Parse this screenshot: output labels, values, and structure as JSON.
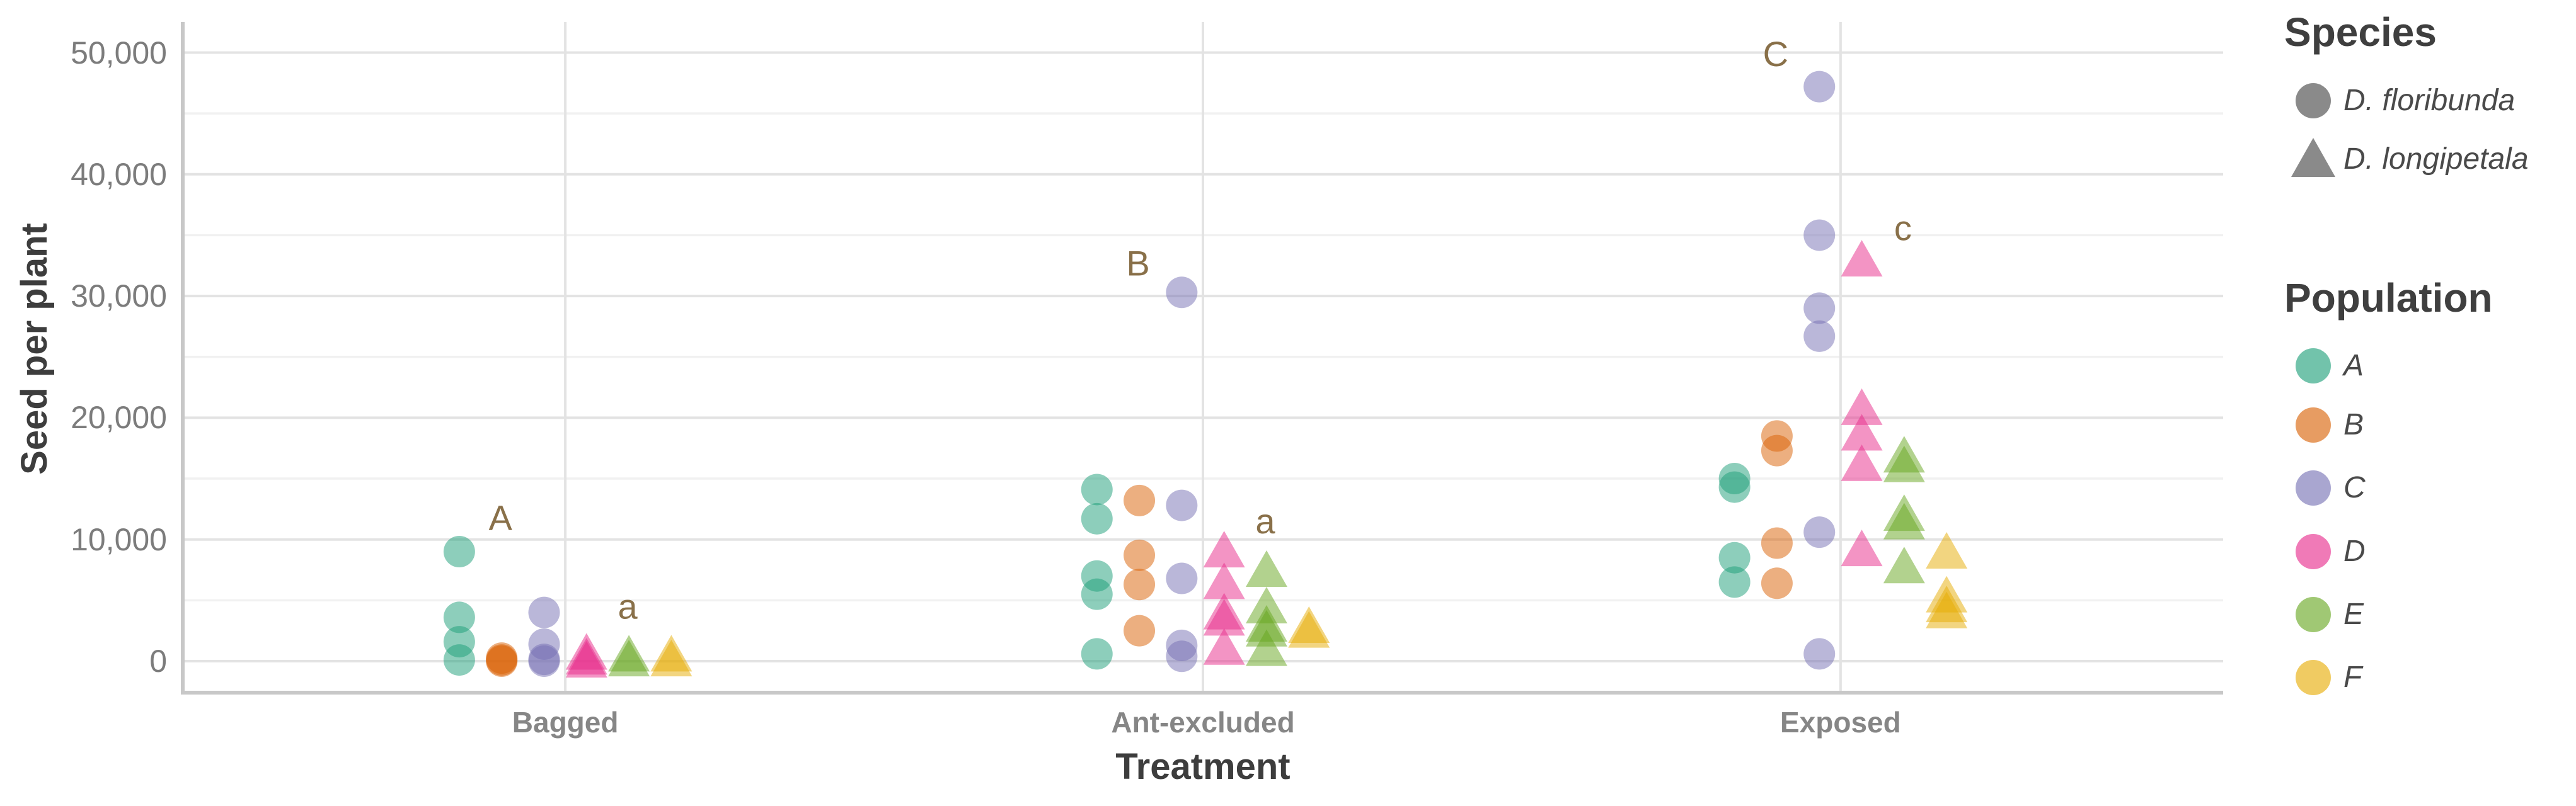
{
  "chart_data": {
    "type": "scatter",
    "title": "",
    "xlabel": "Treatment",
    "ylabel": "Seed per plant",
    "categories": [
      "Bagged",
      "Ant-excluded",
      "Exposed"
    ],
    "y_ticks": [
      {
        "value": 0,
        "label": "0"
      },
      {
        "value": 10000,
        "label": "10,000"
      },
      {
        "value": 20000,
        "label": "20,000"
      },
      {
        "value": 30000,
        "label": "30,000"
      },
      {
        "value": 40000,
        "label": "40,000"
      },
      {
        "value": 50000,
        "label": "50,000"
      }
    ],
    "y_minor_ticks": [
      5000,
      15000,
      25000,
      35000,
      45000
    ],
    "ylim": [
      -2600,
      52500
    ],
    "grid": "major+minor",
    "legend_position": "right",
    "point_alpha": 0.5,
    "legend": {
      "species_title": "Species",
      "species": [
        {
          "label": "D. floribunda",
          "shape": "circle"
        },
        {
          "label": "D. longipetala",
          "shape": "triangle"
        }
      ],
      "population_title": "Population",
      "population": [
        {
          "label": "A",
          "color": "#1B9E77"
        },
        {
          "label": "B",
          "color": "#D95F02"
        },
        {
          "label": "C",
          "color": "#7570B3"
        },
        {
          "label": "D",
          "color": "#E7298A"
        },
        {
          "label": "E",
          "color": "#66A61E"
        },
        {
          "label": "F",
          "color": "#E6AB02"
        }
      ]
    },
    "annotations": [
      {
        "text": "A",
        "treatment": "Bagged",
        "side": "left",
        "value": 11800
      },
      {
        "text": "a",
        "treatment": "Bagged",
        "side": "right",
        "value": 4500
      },
      {
        "text": "B",
        "treatment": "Ant-excluded",
        "side": "left",
        "value": 32700
      },
      {
        "text": "a",
        "treatment": "Ant-excluded",
        "side": "right",
        "value": 11500
      },
      {
        "text": "C",
        "treatment": "Exposed",
        "side": "left",
        "value": 49900
      },
      {
        "text": "c",
        "treatment": "Exposed",
        "side": "right",
        "value": 35600
      }
    ],
    "series": [
      {
        "treatment": "Bagged",
        "population": "A",
        "species": "D. floribunda",
        "values": [
          9000,
          3600,
          1600,
          100
        ]
      },
      {
        "treatment": "Bagged",
        "population": "B",
        "species": "D. floribunda",
        "values": [
          250,
          100,
          0
        ]
      },
      {
        "treatment": "Bagged",
        "population": "C",
        "species": "D. floribunda",
        "values": [
          4000,
          1400,
          150,
          0
        ]
      },
      {
        "treatment": "Bagged",
        "population": "D",
        "species": "D. longipetala",
        "values": [
          700,
          300,
          50
        ]
      },
      {
        "treatment": "Bagged",
        "population": "E",
        "species": "D. longipetala",
        "values": [
          550,
          150
        ]
      },
      {
        "treatment": "Bagged",
        "population": "F",
        "species": "D. longipetala",
        "values": [
          550,
          150
        ]
      },
      {
        "treatment": "Ant-excluded",
        "population": "A",
        "species": "D. floribunda",
        "values": [
          14100,
          11700,
          7000,
          5500,
          600
        ]
      },
      {
        "treatment": "Ant-excluded",
        "population": "B",
        "species": "D. floribunda",
        "values": [
          13200,
          8700,
          6300,
          2500
        ]
      },
      {
        "treatment": "Ant-excluded",
        "population": "C",
        "species": "D. floribunda",
        "values": [
          30300,
          12800,
          6800,
          1300,
          400
        ]
      },
      {
        "treatment": "Ant-excluded",
        "population": "D",
        "species": "D. longipetala",
        "values": [
          9100,
          6500,
          4000,
          3500,
          1100
        ]
      },
      {
        "treatment": "Ant-excluded",
        "population": "E",
        "species": "D. longipetala",
        "values": [
          7500,
          4500,
          3000,
          2600,
          1000
        ]
      },
      {
        "treatment": "Ant-excluded",
        "population": "F",
        "species": "D. longipetala",
        "values": [
          2900,
          2500
        ]
      },
      {
        "treatment": "Exposed",
        "population": "A",
        "species": "D. floribunda",
        "values": [
          15000,
          14300,
          8500,
          6500
        ]
      },
      {
        "treatment": "Exposed",
        "population": "B",
        "species": "D. floribunda",
        "values": [
          18500,
          17300,
          9700,
          6400
        ]
      },
      {
        "treatment": "Exposed",
        "population": "C",
        "species": "D. floribunda",
        "values": [
          47200,
          35000,
          29000,
          26700,
          10600,
          600
        ]
      },
      {
        "treatment": "Exposed",
        "population": "D",
        "species": "D. longipetala",
        "values": [
          33000,
          20800,
          18700,
          16200,
          9200
        ]
      },
      {
        "treatment": "Exposed",
        "population": "E",
        "species": "D. longipetala",
        "values": [
          16900,
          16100,
          12100,
          11400,
          7800
        ]
      },
      {
        "treatment": "Exposed",
        "population": "F",
        "species": "D. longipetala",
        "values": [
          9000,
          5400,
          4600,
          4100
        ]
      }
    ],
    "colors": {
      "annotation_letters": "#897049",
      "axis_tick_text": "#7c7c7c",
      "axis_title_text": "#3d3d3d",
      "grid_major": "#e3e3e3",
      "grid_minor": "#f1f1f1",
      "axis_line": "#c8c8c8",
      "species_key_gray": "#8a8a8a"
    }
  }
}
